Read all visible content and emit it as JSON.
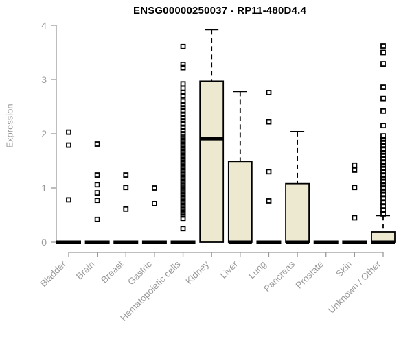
{
  "chart_data": {
    "type": "boxplot",
    "title": "ENSG00000250037 - RP11-480D4.4",
    "ylabel": "Expression",
    "ylim": [
      0,
      4
    ],
    "yticks": [
      0,
      1,
      2,
      3,
      4
    ],
    "grid": false,
    "outlier_marker": "open-square",
    "categories": [
      "Bladder",
      "Brain",
      "Breast",
      "Gastric",
      "Hematopoietic cells",
      "Kidney",
      "Liver",
      "Lung",
      "Pancreas",
      "Prostate",
      "Skin",
      "Unknown / Other"
    ],
    "series": [
      {
        "category": "Bladder",
        "q1": 0,
        "median": 0,
        "q3": 0,
        "whisker_low": 0,
        "whisker_high": 0,
        "outliers": [
          2.03,
          1.79,
          0.78
        ]
      },
      {
        "category": "Brain",
        "q1": 0,
        "median": 0,
        "q3": 0,
        "whisker_low": 0,
        "whisker_high": 0,
        "outliers": [
          1.81,
          1.24,
          1.06,
          0.91,
          0.77,
          0.42
        ]
      },
      {
        "category": "Breast",
        "q1": 0,
        "median": 0,
        "q3": 0,
        "whisker_low": 0,
        "whisker_high": 0,
        "outliers": [
          1.24,
          1.01,
          0.61
        ]
      },
      {
        "category": "Gastric",
        "q1": 0,
        "median": 0,
        "q3": 0,
        "whisker_low": 0,
        "whisker_high": 0,
        "outliers": [
          1.0,
          0.71
        ]
      },
      {
        "category": "Hematopoietic cells",
        "q1": 0,
        "median": 0,
        "q3": 0,
        "whisker_low": 0,
        "whisker_high": 0,
        "outliers": [
          3.61,
          3.28,
          3.22,
          2.92,
          2.84,
          2.76,
          2.7,
          2.6,
          2.54,
          2.48,
          2.42,
          2.36,
          2.3,
          2.24,
          2.18,
          2.12,
          2.06,
          2.0,
          1.95,
          1.9,
          1.85,
          1.8,
          1.75,
          1.7,
          1.65,
          1.6,
          1.55,
          1.5,
          1.45,
          1.4,
          1.35,
          1.3,
          1.25,
          1.2,
          1.15,
          1.1,
          1.05,
          1.0,
          0.95,
          0.9,
          0.85,
          0.8,
          0.75,
          0.7,
          0.65,
          0.6,
          0.55,
          0.5,
          0.44,
          0.25
        ]
      },
      {
        "category": "Kidney",
        "q1": 0,
        "median": 1.91,
        "q3": 2.97,
        "whisker_low": 0,
        "whisker_high": 3.92,
        "outliers": []
      },
      {
        "category": "Liver",
        "q1": 0,
        "median": 0,
        "q3": 1.49,
        "whisker_low": 0,
        "whisker_high": 2.78,
        "outliers": []
      },
      {
        "category": "Lung",
        "q1": 0,
        "median": 0,
        "q3": 0,
        "whisker_low": 0,
        "whisker_high": 0,
        "outliers": [
          2.76,
          2.22,
          1.3,
          0.76
        ]
      },
      {
        "category": "Pancreas",
        "q1": 0,
        "median": 0,
        "q3": 1.08,
        "whisker_low": 0,
        "whisker_high": 2.04,
        "outliers": []
      },
      {
        "category": "Prostate",
        "q1": 0,
        "median": 0,
        "q3": 0,
        "whisker_low": 0,
        "whisker_high": 0,
        "outliers": []
      },
      {
        "category": "Skin",
        "q1": 0,
        "median": 0,
        "q3": 0,
        "whisker_low": 0,
        "whisker_high": 0,
        "outliers": [
          1.42,
          1.33,
          1.01,
          0.45
        ]
      },
      {
        "category": "Unknown / Other",
        "q1": 0,
        "median": 0,
        "q3": 0.19,
        "whisker_low": 0,
        "whisker_high": 0.49,
        "outliers": [
          3.62,
          3.5,
          3.29,
          2.86,
          2.65,
          2.42,
          2.15,
          1.96,
          1.9,
          1.84,
          1.78,
          1.72,
          1.66,
          1.6,
          1.54,
          1.48,
          1.42,
          1.36,
          1.3,
          1.24,
          1.18,
          1.12,
          1.06,
          1.0,
          0.94,
          0.88,
          0.82,
          0.73,
          0.67,
          0.59,
          0.52
        ]
      }
    ],
    "colors": {
      "box_fill": "#EDE8D0",
      "box_border": "#000000",
      "median": "#000000",
      "outlier": "#000000",
      "axis": "#999999",
      "tick_label": "#9a9a9a",
      "title": "#000000",
      "background": "#ffffff"
    },
    "legend_position": "none"
  }
}
